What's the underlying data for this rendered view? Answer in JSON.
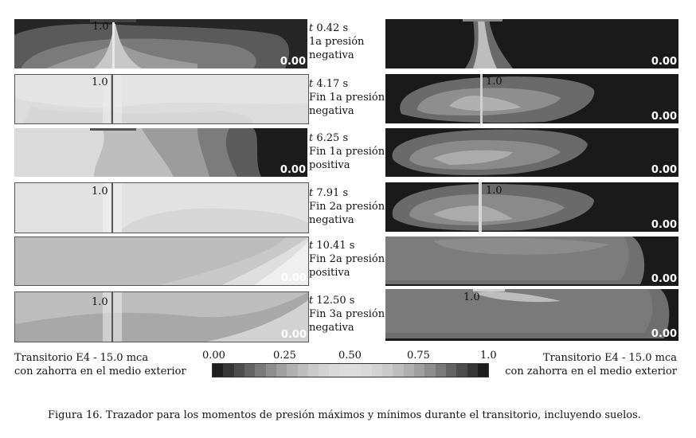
{
  "panel_labels": {
    "max": "1.0",
    "min": "0.00"
  },
  "time_labels": [
    {
      "t": "t",
      "time": "0.42 s",
      "line1": "1a presión",
      "line2": "negativa"
    },
    {
      "t": "t",
      "time": "4.17 s",
      "line1": "Fin 1a presión",
      "line2": "negativa"
    },
    {
      "t": "t",
      "time": "6.25 s",
      "line1": "Fin 1a presión",
      "line2": "positiva"
    },
    {
      "t": "t",
      "time": "7.91 s",
      "line1": "Fin 2a presión",
      "line2": "negativa"
    },
    {
      "t": "t",
      "time": "10.41 s",
      "line1": "Fin 2a presión",
      "line2": "positiva"
    },
    {
      "t": "t",
      "time": "12.50 s",
      "line1": "Fin 3a presión",
      "line2": "negativa"
    }
  ],
  "legend": {
    "left_line1": "Transitorio E4 - 15.0 mca",
    "left_line2": "con zahorra en el medio exterior",
    "right_line1": "Transitorio E4 - 15.0 mca",
    "right_line2": "con zahorra en el medio exterior",
    "ticks": [
      "0.00",
      "0.25",
      "0.50",
      "0.75",
      "1.0"
    ]
  },
  "caption": "Figura 16. Trazador para los momentos de presión máximos y mínimos durante el transitorio, incluyendo suelos."
}
